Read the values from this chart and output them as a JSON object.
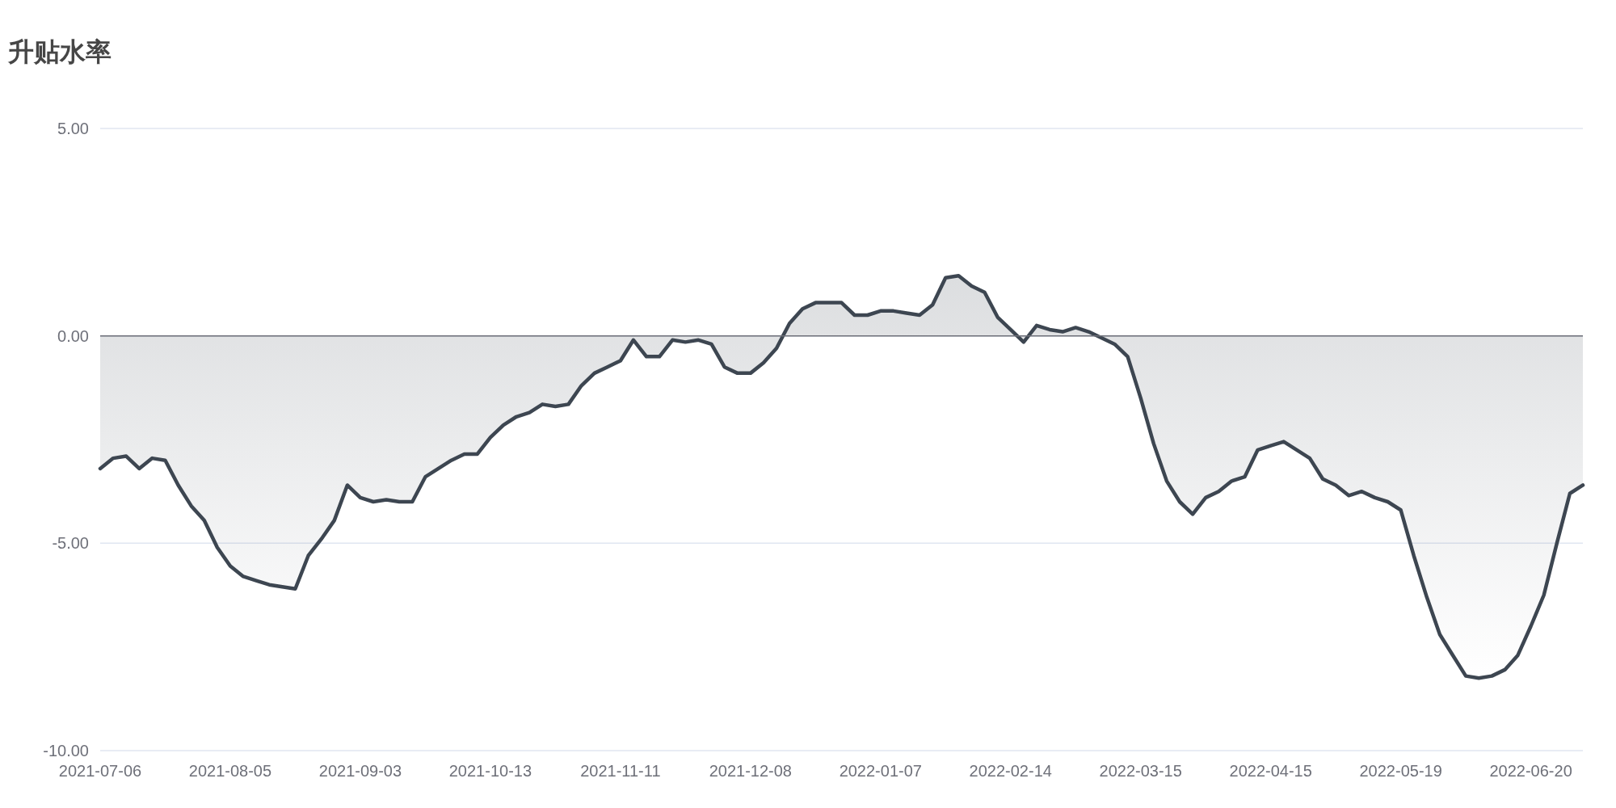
{
  "chart_data": {
    "type": "area",
    "title": "升贴水率",
    "categories": [
      "2021-07-06",
      null,
      null,
      null,
      null,
      null,
      null,
      null,
      null,
      null,
      "2021-08-05",
      null,
      null,
      null,
      null,
      null,
      null,
      null,
      null,
      null,
      "2021-09-03",
      null,
      null,
      null,
      null,
      null,
      null,
      null,
      null,
      null,
      "2021-10-13",
      null,
      null,
      null,
      null,
      null,
      null,
      null,
      null,
      null,
      "2021-11-11",
      null,
      null,
      null,
      null,
      null,
      null,
      null,
      null,
      null,
      "2021-12-08",
      null,
      null,
      null,
      null,
      null,
      null,
      null,
      null,
      null,
      "2022-01-07",
      null,
      null,
      null,
      null,
      null,
      null,
      null,
      null,
      null,
      "2022-02-14",
      null,
      null,
      null,
      null,
      null,
      null,
      null,
      null,
      null,
      "2022-03-15",
      null,
      null,
      null,
      null,
      null,
      null,
      null,
      null,
      null,
      "2022-04-15",
      null,
      null,
      null,
      null,
      null,
      null,
      null,
      null,
      null,
      "2022-05-19",
      null,
      null,
      null,
      null,
      null,
      null,
      null,
      null,
      null,
      "2022-06-20",
      null,
      null,
      null,
      null
    ],
    "series": [
      {
        "color": "#3d4651",
        "values": [
          -3.2,
          -2.95,
          -2.9,
          -3.2,
          -2.95,
          -3.0,
          -3.6,
          -4.1,
          -4.45,
          -5.1,
          -5.55,
          -5.8,
          -5.9,
          -6.0,
          -6.05,
          -6.1,
          -5.3,
          -4.9,
          -4.45,
          -3.6,
          -3.9,
          -4.0,
          -3.95,
          -4.0,
          -4.0,
          -3.4,
          -3.2,
          -3.0,
          -2.85,
          -2.85,
          -2.45,
          -2.15,
          -1.95,
          -1.85,
          -1.65,
          -1.7,
          -1.65,
          -1.2,
          -0.9,
          -0.75,
          -0.6,
          -0.1,
          -0.5,
          -0.5,
          -0.1,
          -0.15,
          -0.1,
          -0.2,
          -0.75,
          -0.9,
          -0.9,
          -0.65,
          -0.3,
          0.3,
          0.65,
          0.8,
          0.8,
          0.8,
          0.5,
          0.5,
          0.6,
          0.6,
          0.55,
          0.5,
          0.75,
          1.4,
          1.45,
          1.2,
          1.05,
          0.45,
          0.15,
          -0.15,
          0.25,
          0.15,
          0.1,
          0.2,
          0.1,
          -0.05,
          -0.2,
          -0.5,
          -1.5,
          -2.6,
          -3.5,
          -4.0,
          -4.3,
          -3.9,
          -3.75,
          -3.5,
          -3.4,
          -2.75,
          -2.65,
          -2.55,
          -2.75,
          -2.95,
          -3.45,
          -3.6,
          -3.85,
          -3.75,
          -3.9,
          -4.0,
          -4.2,
          -5.3,
          -6.3,
          -7.2,
          -7.7,
          -8.2,
          -8.25,
          -8.2,
          -8.05,
          -7.7,
          -7.0,
          -6.25,
          -5.0,
          -3.8,
          -3.6
        ]
      }
    ],
    "ylim": [
      -10,
      5
    ],
    "yticks": [
      {
        "value": 5,
        "label": "5.00"
      },
      {
        "value": 0,
        "label": "0.00"
      },
      {
        "value": -5,
        "label": "-5.00"
      },
      {
        "value": -10,
        "label": "-10.00"
      }
    ],
    "grid": "y",
    "marker": "none",
    "line_style": "solid"
  }
}
